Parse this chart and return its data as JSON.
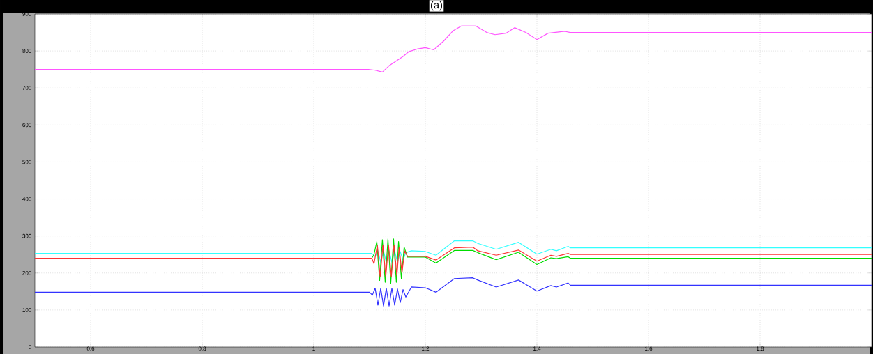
{
  "chart_data": {
    "type": "line",
    "title": "(a)",
    "xlim": [
      0.5,
      2.0
    ],
    "ylim": [
      0,
      900
    ],
    "xticks": [
      0.6,
      0.8,
      1,
      1.2,
      1.4,
      1.6,
      1.8
    ],
    "yticks": [
      0,
      100,
      200,
      300,
      400,
      500,
      600,
      700,
      800,
      900
    ],
    "grid": true,
    "series": [
      {
        "color": "#ff55ff",
        "x": [
          0.5,
          1.098,
          1.11,
          1.123,
          1.135,
          1.145,
          1.16,
          1.17,
          1.185,
          1.2,
          1.215,
          1.233,
          1.25,
          1.265,
          1.29,
          1.31,
          1.325,
          1.345,
          1.36,
          1.38,
          1.4,
          1.42,
          1.45,
          1.46,
          2.0
        ],
        "values": [
          750,
          750,
          748,
          743,
          760,
          770,
          785,
          798,
          805,
          809,
          803,
          827,
          855,
          868,
          868,
          850,
          844,
          848,
          863,
          850,
          831,
          848,
          853,
          850,
          850
        ]
      },
      {
        "color": "#33ffff",
        "x": [
          0.5,
          1.104,
          1.11,
          1.115,
          1.12,
          1.125,
          1.13,
          1.135,
          1.14,
          1.145,
          1.15,
          1.155,
          1.16,
          1.165,
          1.175,
          1.2,
          1.219,
          1.252,
          1.285,
          1.294,
          1.327,
          1.367,
          1.4,
          1.425,
          1.435,
          1.456,
          1.46,
          2.0
        ],
        "values": [
          253,
          253,
          245,
          260,
          229,
          260,
          229,
          260,
          229,
          260,
          229,
          258,
          235,
          255,
          260,
          258,
          248,
          287,
          287,
          280,
          264,
          283,
          251,
          264,
          260,
          272,
          268,
          268
        ]
      },
      {
        "color": "#00dd00",
        "x": [
          0.5,
          1.104,
          1.108,
          1.113,
          1.118,
          1.123,
          1.128,
          1.133,
          1.138,
          1.143,
          1.148,
          1.152,
          1.157,
          1.162,
          1.168,
          1.2,
          1.219,
          1.252,
          1.285,
          1.294,
          1.327,
          1.367,
          1.4,
          1.425,
          1.435,
          1.456,
          1.46,
          2.0
        ],
        "values": [
          240,
          240,
          250,
          285,
          180,
          290,
          175,
          292,
          172,
          292,
          175,
          285,
          185,
          270,
          243,
          243,
          227,
          261,
          261,
          255,
          236,
          256,
          223,
          241,
          239,
          244,
          240,
          240
        ]
      },
      {
        "color": "#ff3333",
        "x": [
          0.5,
          1.104,
          1.108,
          1.114,
          1.119,
          1.124,
          1.129,
          1.134,
          1.139,
          1.144,
          1.149,
          1.153,
          1.158,
          1.163,
          1.168,
          1.2,
          1.219,
          1.252,
          1.285,
          1.294,
          1.327,
          1.367,
          1.4,
          1.425,
          1.435,
          1.456,
          1.46,
          2.0
        ],
        "values": [
          240,
          240,
          225,
          276,
          190,
          276,
          190,
          276,
          190,
          276,
          192,
          270,
          200,
          260,
          245,
          245,
          235,
          268,
          270,
          260,
          248,
          262,
          232,
          248,
          245,
          253,
          250,
          250
        ]
      },
      {
        "color": "#3333ff",
        "x": [
          0.5,
          1.1,
          1.105,
          1.11,
          1.115,
          1.12,
          1.125,
          1.13,
          1.135,
          1.14,
          1.145,
          1.15,
          1.155,
          1.16,
          1.165,
          1.175,
          1.2,
          1.219,
          1.252,
          1.285,
          1.294,
          1.327,
          1.367,
          1.4,
          1.425,
          1.435,
          1.456,
          1.46,
          2.0
        ],
        "values": [
          148,
          148,
          140,
          159,
          113,
          159,
          111,
          159,
          111,
          159,
          113,
          157,
          120,
          155,
          135,
          162,
          160,
          148,
          185,
          187,
          181,
          162,
          181,
          151,
          166,
          162,
          173,
          167,
          167
        ]
      }
    ]
  }
}
